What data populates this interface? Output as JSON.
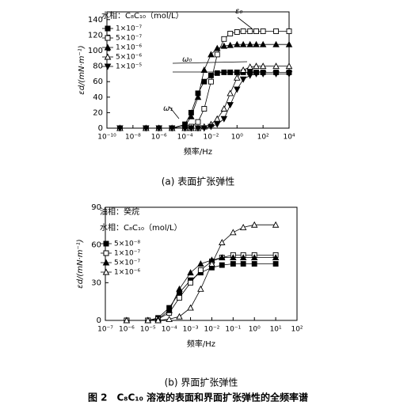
{
  "figure_caption": "图 2　C₈C₁₀ 溶液的表面和界面扩张弹性的全频率谱",
  "chart_data": [
    {
      "type": "scatter",
      "caption": "(a) 表面扩张弹性",
      "xlabel": "频率/Hz",
      "ylabel": "εd/(mN·m⁻¹)",
      "legend_title": [
        "水相：C₈C₁₀（mol/L）"
      ],
      "annotations": [
        "ε₀",
        "ω₀",
        "ω₁"
      ],
      "xscale": "log",
      "xlim": [
        1e-10,
        10000
      ],
      "xticks": [
        {
          "value": 1e-10,
          "label": "10⁻¹⁰"
        },
        {
          "value": 1e-08,
          "label": "10⁻⁸"
        },
        {
          "value": 1e-06,
          "label": "10⁻⁶"
        },
        {
          "value": 0.0001,
          "label": "10⁻⁴"
        },
        {
          "value": 0.01,
          "label": "10⁻²"
        },
        {
          "value": 1,
          "label": "10⁰"
        },
        {
          "value": 100,
          "label": "10²"
        },
        {
          "value": 10000,
          "label": "10⁴"
        }
      ],
      "ylim": [
        0,
        150
      ],
      "yticks": [
        0,
        20,
        40,
        60,
        80,
        100,
        120,
        140
      ],
      "x": [
        1e-09,
        1e-07,
        1e-06,
        1e-05,
        0.0001,
        0.0003,
        0.001,
        0.003,
        0.01,
        0.03,
        0.1,
        0.3,
        1,
        3,
        10,
        30,
        100,
        1000,
        10000
      ],
      "series": [
        {
          "name": "1×10⁻⁷",
          "marker": "square",
          "filled": true,
          "color": "#000",
          "values": [
            0,
            0,
            0,
            0,
            5,
            20,
            45,
            60,
            68,
            71,
            72,
            72,
            72,
            72,
            72,
            72,
            72,
            72,
            72
          ]
        },
        {
          "name": "5×10⁻⁷",
          "marker": "square",
          "filled": false,
          "color": "#000",
          "values": [
            0,
            0,
            0,
            0,
            0,
            2,
            8,
            25,
            60,
            95,
            115,
            122,
            124,
            125,
            125,
            125,
            125,
            125,
            125
          ]
        },
        {
          "name": "1×10⁻⁶",
          "marker": "triangle",
          "filled": true,
          "color": "#000",
          "values": [
            0,
            0,
            0,
            0,
            3,
            15,
            40,
            75,
            95,
            103,
            106,
            107,
            108,
            108,
            108,
            108,
            108,
            108,
            108
          ]
        },
        {
          "name": "5×10⁻⁶",
          "marker": "triangle",
          "filled": false,
          "color": "#000",
          "values": [
            0,
            0,
            0,
            0,
            0,
            0,
            0,
            2,
            5,
            12,
            25,
            45,
            65,
            75,
            79,
            80,
            80,
            80,
            80
          ]
        },
        {
          "name": "1×10⁻⁵",
          "marker": "triangle-down",
          "filled": true,
          "color": "#000",
          "values": [
            0,
            0,
            0,
            0,
            0,
            0,
            0,
            0,
            2,
            5,
            12,
            30,
            50,
            63,
            68,
            70,
            70,
            70,
            70
          ]
        }
      ]
    },
    {
      "type": "scatter",
      "caption": "(b) 界面扩张弹性",
      "xlabel": "频率/Hz",
      "ylabel": "εd/(mN·m⁻¹)",
      "legend_title": [
        "油相：癸烷",
        "水相：C₈C₁₀（mol/L）"
      ],
      "xscale": "log",
      "xlim": [
        1e-07,
        100
      ],
      "xticks": [
        {
          "value": 1e-07,
          "label": "10⁻⁷"
        },
        {
          "value": 1e-06,
          "label": "10⁻⁶"
        },
        {
          "value": 1e-05,
          "label": "10⁻⁵"
        },
        {
          "value": 0.0001,
          "label": "10⁻⁴"
        },
        {
          "value": 0.001,
          "label": "10⁻³"
        },
        {
          "value": 0.01,
          "label": "10⁻²"
        },
        {
          "value": 0.1,
          "label": "10⁻¹"
        },
        {
          "value": 1,
          "label": "10⁰"
        },
        {
          "value": 10,
          "label": "10¹"
        },
        {
          "value": 100,
          "label": "10²"
        }
      ],
      "ylim": [
        0,
        90
      ],
      "yticks": [
        0,
        30,
        60,
        90
      ],
      "x": [
        1e-06,
        1e-05,
        3e-05,
        0.0001,
        0.0003,
        0.001,
        0.003,
        0.01,
        0.03,
        0.1,
        0.3,
        1,
        10
      ],
      "series": [
        {
          "name": "5×10⁻⁸",
          "marker": "square",
          "filled": true,
          "color": "#000",
          "values": [
            0,
            0,
            2,
            10,
            22,
            32,
            38,
            42,
            44,
            45,
            45,
            45,
            45
          ]
        },
        {
          "name": "1×10⁻⁷",
          "marker": "square",
          "filled": false,
          "color": "#000",
          "values": [
            0,
            0,
            1,
            6,
            18,
            30,
            40,
            47,
            50,
            52,
            52,
            52,
            52
          ]
        },
        {
          "name": "5×10⁻⁷",
          "marker": "triangle",
          "filled": true,
          "color": "#000",
          "values": [
            0,
            0,
            1,
            8,
            25,
            38,
            45,
            48,
            50,
            50,
            50,
            50,
            50
          ]
        },
        {
          "name": "1×10⁻⁶",
          "marker": "triangle",
          "filled": false,
          "color": "#000",
          "values": [
            0,
            0,
            0,
            1,
            3,
            10,
            25,
            45,
            62,
            70,
            74,
            76,
            76
          ]
        }
      ]
    }
  ]
}
